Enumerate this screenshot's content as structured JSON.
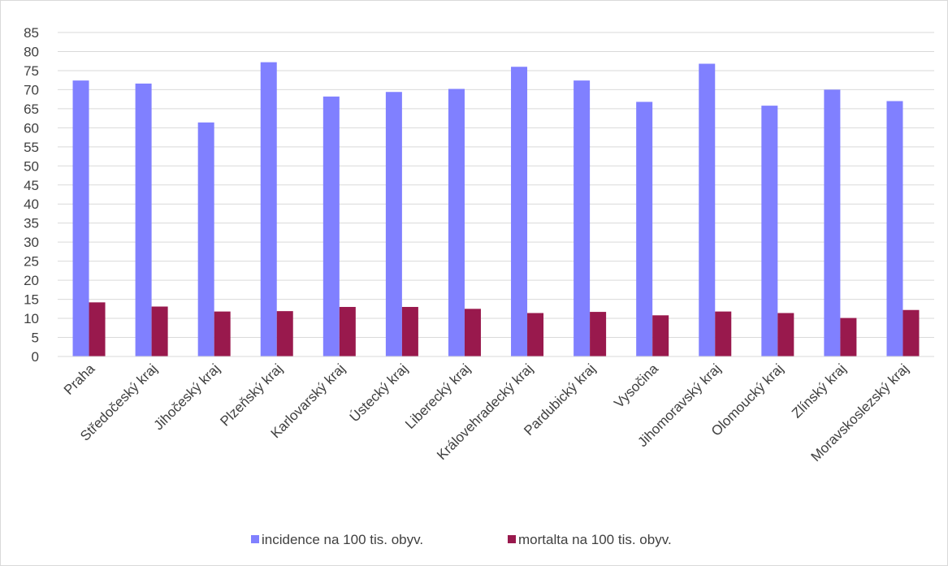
{
  "chart_data": {
    "type": "bar",
    "title": "",
    "xlabel": "",
    "ylabel": "",
    "ylim": [
      0,
      85
    ],
    "ytick_step": 5,
    "grid": true,
    "legend_position": "bottom",
    "categories": [
      "Praha",
      "Středočeský kraj",
      "Jihočeský kraj",
      "Plzeňský kraj",
      "Karlovarský kraj",
      "Ústecký kraj",
      "Liberecký kraj",
      "Královehradecký kraj",
      "Pardubický kraj",
      "Vysočina",
      "Jihomoravský kraj",
      "Olomoucký kraj",
      "Zlínský kraj",
      "Moravskoslezský kraj"
    ],
    "series": [
      {
        "name": "incidence na 100 tis. obyv.",
        "color": "#8080ff",
        "values": [
          72.4,
          71.6,
          61.4,
          77.2,
          68.2,
          69.4,
          70.2,
          76.0,
          72.4,
          66.8,
          76.8,
          65.8,
          70.0,
          67.0
        ]
      },
      {
        "name": "mortalta na 100 tis. obyv.",
        "color": "#99194d",
        "values": [
          14.2,
          13.1,
          11.8,
          11.9,
          13.0,
          13.0,
          12.5,
          11.4,
          11.7,
          10.8,
          11.8,
          11.4,
          10.1,
          12.2
        ]
      }
    ]
  }
}
